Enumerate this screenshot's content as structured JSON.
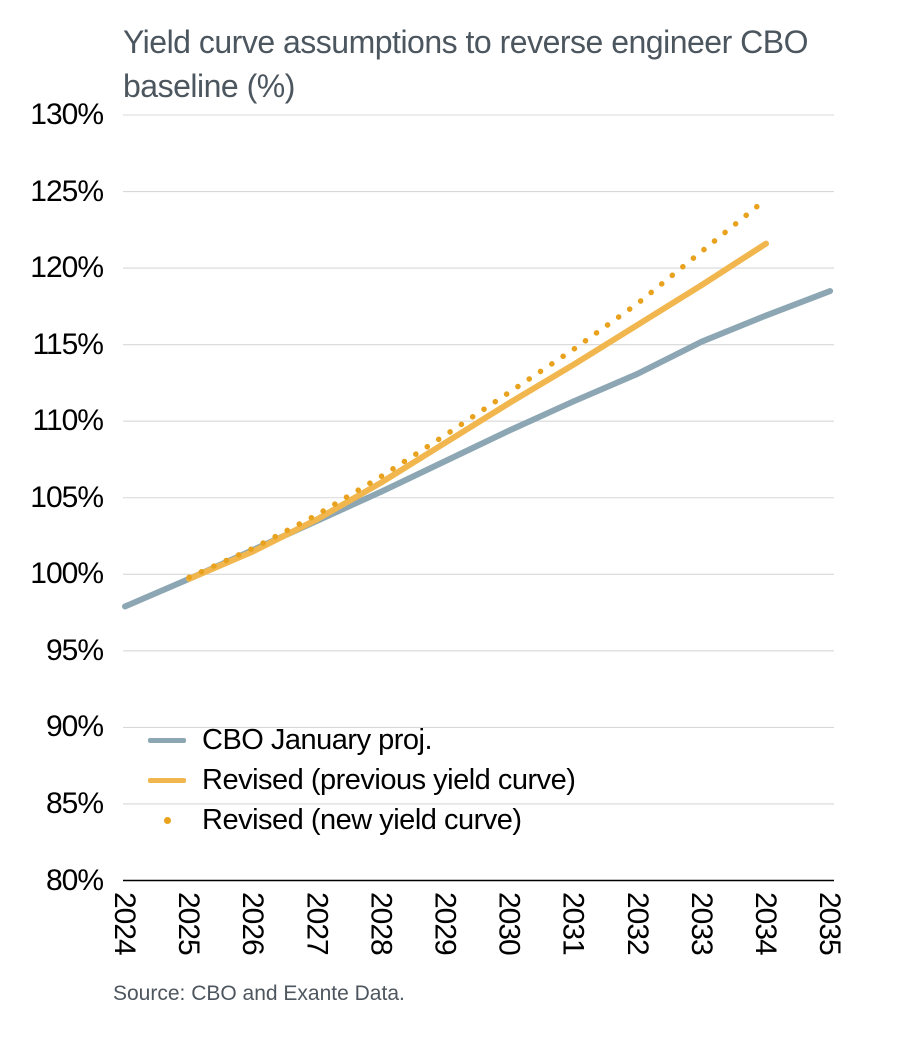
{
  "title": "Yield curve assumptions to reverse engineer CBO baseline (%)",
  "source": "Source: CBO and Exante Data.",
  "colors": {
    "title_text": "#4c565f",
    "source_text": "#4d565e",
    "gridline": "#d8d8d8",
    "axis_line": "#000000",
    "tick_text": "#000000",
    "cbo_line": "#8ca7b3",
    "revised_prev_line": "#f1b74e",
    "revised_new_dots": "#e8a21e"
  },
  "chart_data": {
    "type": "line",
    "title": "Yield curve assumptions to reverse engineer CBO baseline (%)",
    "xlabel": "",
    "ylabel": "",
    "ylim": [
      80,
      130
    ],
    "y_tick_labels": [
      "130%",
      "125%",
      "120%",
      "115%",
      "110%",
      "105%",
      "100%",
      "95%",
      "90%",
      "85%",
      "80%"
    ],
    "y_tick_values": [
      130,
      125,
      120,
      115,
      110,
      105,
      100,
      95,
      90,
      85,
      80
    ],
    "x_tick_labels": [
      "2024",
      "2025",
      "2026",
      "2027",
      "2028",
      "2029",
      "2030",
      "2031",
      "2032",
      "2033",
      "2034",
      "2035"
    ],
    "grid": true,
    "legend_position": "inside-lower-left",
    "series": [
      {
        "name": "CBO January proj.",
        "style": "solid",
        "color": "#8ca7b3",
        "x": [
          2024,
          2025,
          2026,
          2027,
          2028,
          2029,
          2030,
          2031,
          2032,
          2033,
          2034,
          2035
        ],
        "values": [
          97.9,
          99.7,
          101.6,
          103.5,
          105.4,
          107.4,
          109.4,
          111.3,
          113.1,
          115.2,
          116.9,
          118.5
        ]
      },
      {
        "name": "Revised (previous yield curve)",
        "style": "solid",
        "color": "#f1b74e",
        "x": [
          2025,
          2026,
          2027,
          2028,
          2029,
          2030,
          2031,
          2032,
          2033,
          2034
        ],
        "values": [
          99.7,
          101.5,
          103.6,
          106.0,
          108.6,
          111.2,
          113.7,
          116.3,
          118.9,
          121.6
        ]
      },
      {
        "name": "Revised (new yield curve)",
        "style": "dotted",
        "color": "#e8a21e",
        "x": [
          2025,
          2026,
          2027,
          2028,
          2029,
          2030,
          2031,
          2032,
          2033,
          2034
        ],
        "values": [
          99.8,
          101.7,
          103.9,
          106.4,
          109.1,
          111.9,
          114.7,
          117.7,
          121.1,
          124.5
        ]
      }
    ]
  }
}
